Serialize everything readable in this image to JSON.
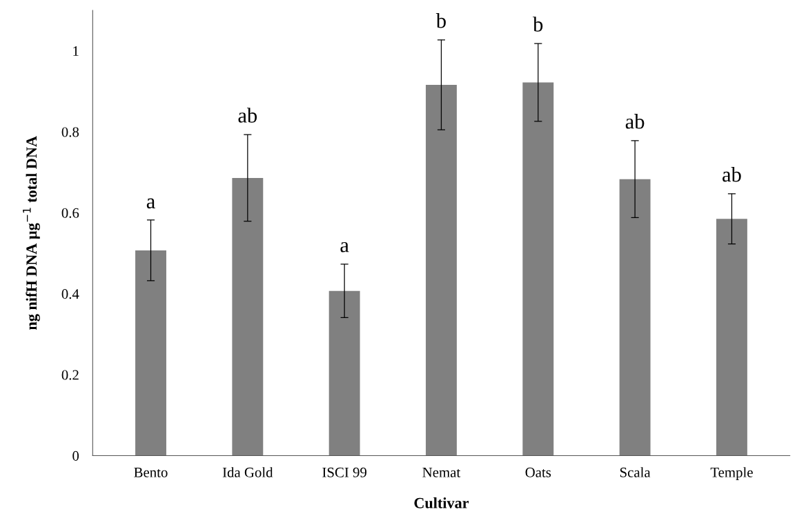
{
  "chart_data": {
    "type": "bar",
    "xlabel": "Cultivar",
    "ylabel": "ng nifH DNA µg$^{−1}$ total DNA",
    "categories": [
      "Bento",
      "Ida Gold",
      "ISCI 99",
      "Nemat",
      "Oats",
      "Scala",
      "Temple"
    ],
    "values": [
      0.507,
      0.686,
      0.407,
      0.916,
      0.922,
      0.683,
      0.585
    ],
    "errors": [
      0.075,
      0.107,
      0.066,
      0.111,
      0.096,
      0.095,
      0.062
    ],
    "color": "#808080",
    "ylim": [
      0,
      1.1
    ],
    "yticks": [
      0,
      0.2,
      0.4,
      0.6,
      0.8,
      1
    ],
    "grid": false,
    "annotations": [
      {
        "text": "a",
        "x": "Bento",
        "y": 0.581
      },
      {
        "text": "ab",
        "x": "Ida Gold",
        "y": 0.793
      },
      {
        "text": "a",
        "x": "ISCI 99",
        "y": 0.473
      },
      {
        "text": "b",
        "x": "Nemat",
        "y": 1.027
      },
      {
        "text": "b",
        "x": "Oats",
        "y": 1.018
      },
      {
        "text": "ab",
        "x": "Scala",
        "y": 0.778
      },
      {
        "text": "ab",
        "x": "Temple",
        "y": 0.647
      }
    ]
  }
}
